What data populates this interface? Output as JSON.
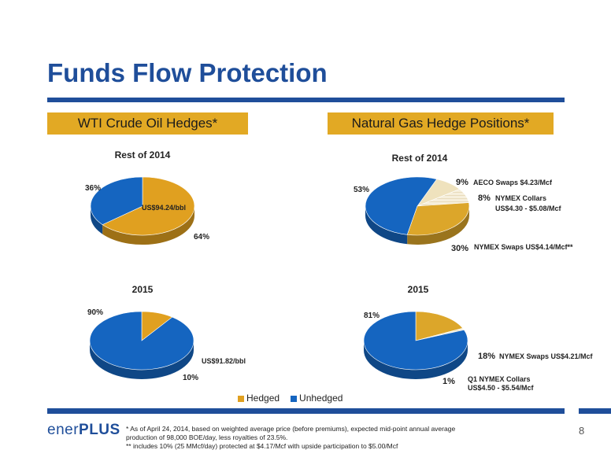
{
  "title": "Funds Flow Protection",
  "headers": {
    "oil": "WTI Crude Oil Hedges*",
    "gas": "Natural Gas Hedge Positions*"
  },
  "legend": {
    "hedged": "Hedged",
    "unhedged": "Unhedged"
  },
  "colors": {
    "hedged": "#e0a020",
    "unhedged": "#1565c0",
    "nymex_swaps": "#dca62a",
    "aeco": "#efe2bd",
    "collars": "#f6efdc",
    "title": "#1f4e9a"
  },
  "logo": {
    "part1": "ener",
    "part2": "PLUS"
  },
  "footnotes": [
    "* As of April 24, 2014, based on weighted average price (before premiums), expected  mid-point annual average",
    "production of 98,000 BOE/day, less royalties of 23.5%.",
    "** includes 10% (25 MMcf/day) protected at $4.17/Mcf with upside participation to $5.00/Mcf"
  ],
  "page_number": "8",
  "chart_data": [
    {
      "type": "pie",
      "title": "Rest of 2014",
      "group": "WTI Crude Oil Hedges",
      "slices": [
        {
          "name": "Hedged",
          "value": 64,
          "label": "64%",
          "inner_label": "US$94.24/bbl"
        },
        {
          "name": "Unhedged",
          "value": 36,
          "label": "36%"
        }
      ]
    },
    {
      "type": "pie",
      "title": "2015",
      "group": "WTI Crude Oil Hedges",
      "slices": [
        {
          "name": "Hedged",
          "value": 10,
          "label": "10%",
          "detail": "US$91.82/bbl"
        },
        {
          "name": "Unhedged",
          "value": 90,
          "label": "90%"
        }
      ]
    },
    {
      "type": "pie",
      "title": "Rest of 2014",
      "group": "Natural Gas Hedge Positions",
      "slices": [
        {
          "name": "AECO Swaps",
          "value": 9,
          "label": "9%",
          "detail": "AECO Swaps $4.23/Mcf"
        },
        {
          "name": "NYMEX Collars",
          "value": 8,
          "label": "8%",
          "detail": "NYMEX Collars",
          "detail2": "US$4.30 - $5.08/Mcf"
        },
        {
          "name": "NYMEX Swaps",
          "value": 30,
          "label": "30%",
          "detail": "NYMEX Swaps US$4.14/Mcf**"
        },
        {
          "name": "Unhedged",
          "value": 53,
          "label": "53%"
        }
      ]
    },
    {
      "type": "pie",
      "title": "2015",
      "group": "Natural Gas Hedge Positions",
      "slices": [
        {
          "name": "NYMEX Swaps",
          "value": 18,
          "label": "18%",
          "detail": "NYMEX Swaps US$4.21/Mcf"
        },
        {
          "name": "Q1 NYMEX Collars",
          "value": 1,
          "label": "1%",
          "detail": "Q1 NYMEX Collars",
          "detail2": "US$4.50 - $5.54/Mcf"
        },
        {
          "name": "Unhedged",
          "value": 81,
          "label": "81%"
        }
      ]
    }
  ]
}
